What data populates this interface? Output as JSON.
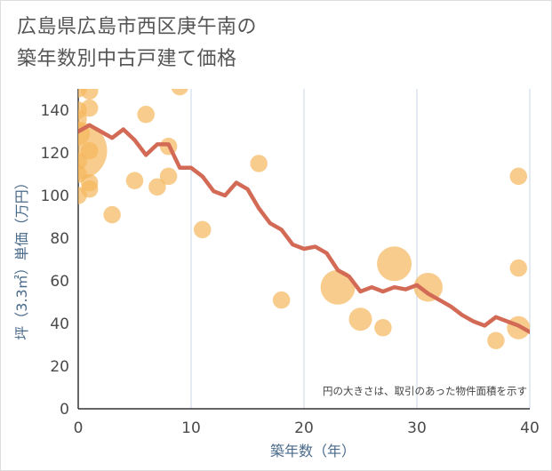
{
  "title": "広島県広島市西区庚午南の\n築年数別中古戸建て価格",
  "chart_data": {
    "type": "scatter",
    "xlabel": "築年数（年）",
    "ylabel": "坪（3.3㎡）単価（万円）",
    "xlim": [
      0,
      40
    ],
    "ylim": [
      0,
      150
    ],
    "xticks": [
      0,
      10,
      20,
      30,
      40
    ],
    "yticks": [
      0,
      20,
      40,
      60,
      80,
      100,
      120,
      140
    ],
    "grid": true,
    "annotation": "円の大きさは、取引のあった物件面積を示す",
    "colors": {
      "bubble": "#f5b75c",
      "line": "#d36a56",
      "grid": "#c9d6e3"
    },
    "bubbles": [
      {
        "x": 0,
        "y": 150,
        "size": 1.5
      },
      {
        "x": 0,
        "y": 140,
        "size": 1.5
      },
      {
        "x": 0,
        "y": 136,
        "size": 1.5
      },
      {
        "x": 0,
        "y": 129,
        "size": 2
      },
      {
        "x": 0,
        "y": 121,
        "size": 5
      },
      {
        "x": 0,
        "y": 116,
        "size": 1.5
      },
      {
        "x": 0,
        "y": 110,
        "size": 1.5
      },
      {
        "x": 0,
        "y": 100,
        "size": 1.5
      },
      {
        "x": 1,
        "y": 149,
        "size": 1.5
      },
      {
        "x": 1,
        "y": 141,
        "size": 1.5
      },
      {
        "x": 1,
        "y": 121,
        "size": 1.5
      },
      {
        "x": 1,
        "y": 106,
        "size": 1.5
      },
      {
        "x": 1,
        "y": 103,
        "size": 1.5
      },
      {
        "x": 3,
        "y": 91,
        "size": 1.5
      },
      {
        "x": 5,
        "y": 107,
        "size": 1.5
      },
      {
        "x": 6,
        "y": 138,
        "size": 1.5
      },
      {
        "x": 7,
        "y": 104,
        "size": 1.5
      },
      {
        "x": 8,
        "y": 123,
        "size": 1.5
      },
      {
        "x": 8,
        "y": 109,
        "size": 1.5
      },
      {
        "x": 9,
        "y": 151,
        "size": 1.5
      },
      {
        "x": 11,
        "y": 84,
        "size": 1.5
      },
      {
        "x": 16,
        "y": 115,
        "size": 1.5
      },
      {
        "x": 18,
        "y": 51,
        "size": 1.5
      },
      {
        "x": 23,
        "y": 57,
        "size": 3
      },
      {
        "x": 25,
        "y": 42,
        "size": 2
      },
      {
        "x": 27,
        "y": 38,
        "size": 1.5
      },
      {
        "x": 28,
        "y": 68,
        "size": 3
      },
      {
        "x": 31,
        "y": 57,
        "size": 2.5
      },
      {
        "x": 37,
        "y": 32,
        "size": 1.5
      },
      {
        "x": 39,
        "y": 109,
        "size": 1.5
      },
      {
        "x": 39,
        "y": 66,
        "size": 1.5
      },
      {
        "x": 39,
        "y": 38,
        "size": 2
      }
    ],
    "line": {
      "x": [
        0,
        1,
        2,
        3,
        4,
        5,
        6,
        7,
        8,
        9,
        10,
        11,
        12,
        13,
        14,
        15,
        16,
        17,
        18,
        19,
        20,
        21,
        22,
        23,
        24,
        25,
        26,
        27,
        28,
        29,
        30,
        31,
        32,
        33,
        34,
        35,
        36,
        37,
        38,
        39,
        40
      ],
      "y": [
        130,
        133,
        130,
        127,
        131,
        126,
        119,
        124,
        124,
        113,
        113,
        109,
        102,
        100,
        106,
        103,
        94,
        87,
        84,
        77,
        75,
        76,
        73,
        65,
        62,
        55,
        57,
        55,
        57,
        56,
        58,
        54,
        51,
        48,
        44,
        41,
        39,
        43,
        41,
        39,
        36
      ]
    }
  }
}
